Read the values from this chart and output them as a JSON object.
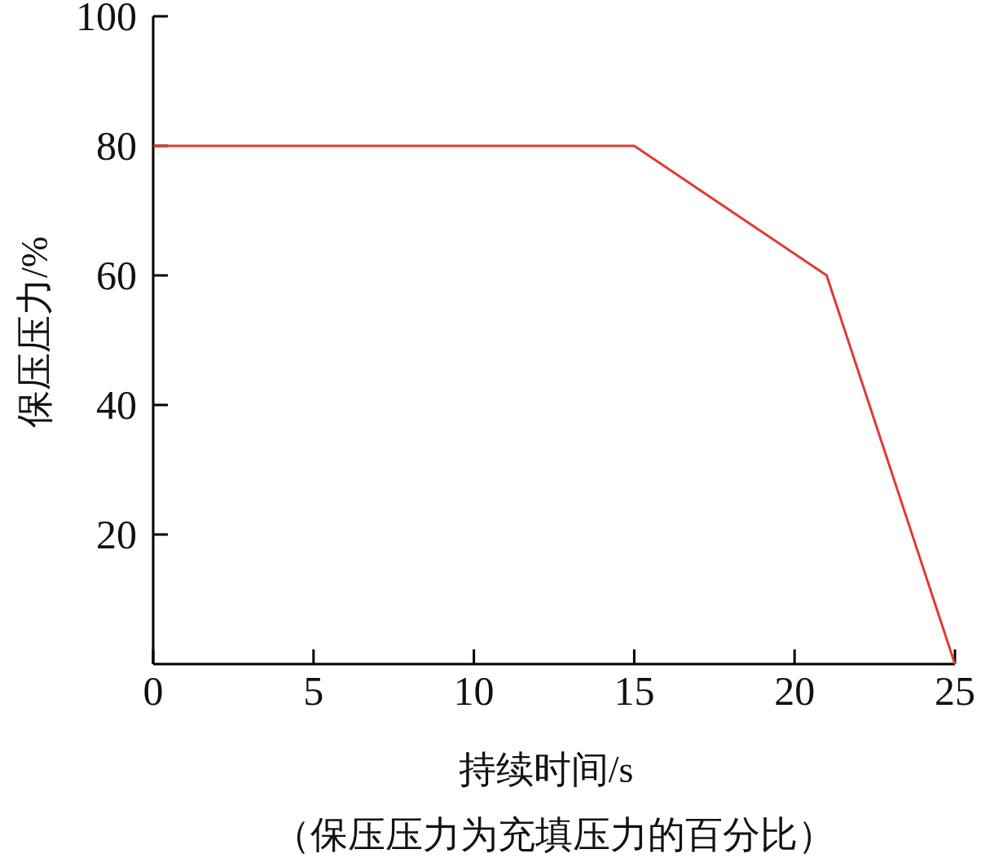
{
  "chart_data": {
    "type": "line",
    "xlabel": "持续时间/s",
    "ylabel": "保压压力/%",
    "annotations": [
      "（保压压力为充填压力的百分比）"
    ],
    "x": [
      0,
      15,
      21,
      25
    ],
    "series": [
      {
        "color": "#e03a33",
        "values": [
          80,
          80,
          60,
          0
        ]
      }
    ],
    "xlim": [
      0,
      25
    ],
    "ylim": [
      0,
      100
    ],
    "xticks": [
      0,
      5,
      10,
      15,
      20,
      25
    ],
    "yticks": [
      20,
      40,
      60,
      80,
      100
    ]
  }
}
